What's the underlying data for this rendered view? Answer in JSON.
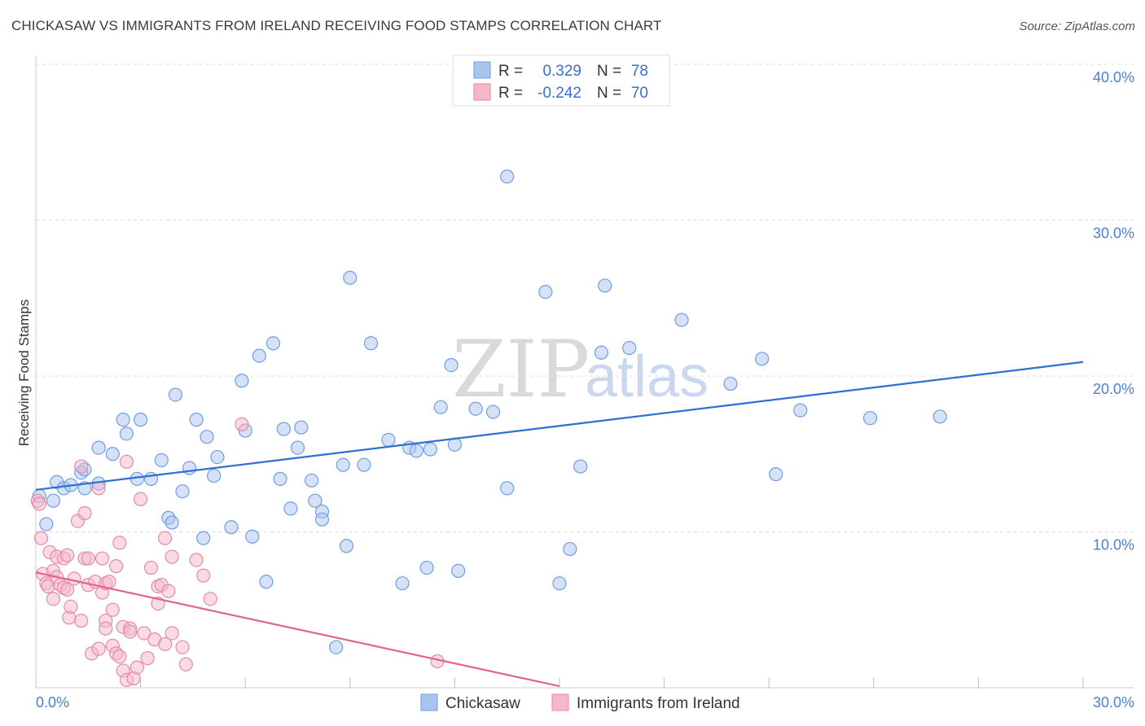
{
  "header": {
    "title": "CHICKASAW VS IMMIGRANTS FROM IRELAND RECEIVING FOOD STAMPS CORRELATION CHART",
    "source": "Source: ZipAtlas.com"
  },
  "watermark": {
    "zip": "ZIP",
    "atlas": "atlas"
  },
  "legend": {
    "rows": [
      {
        "r_label": "R =",
        "r_value": "0.329",
        "n_label": "N =",
        "n_value": "78",
        "color": "#a9c4ee"
      },
      {
        "r_label": "R =",
        "r_value": "-0.242",
        "n_label": "N =",
        "n_value": "70",
        "color": "#f5b8c9"
      }
    ]
  },
  "bottom_legend": [
    {
      "label": "Chickasaw",
      "color": "#a9c4ee"
    },
    {
      "label": "Immigrants from Ireland",
      "color": "#f5b8c9"
    }
  ],
  "chart_data": {
    "type": "scatter",
    "title": "CHICKASAW VS IMMIGRANTS FROM IRELAND RECEIVING FOOD STAMPS CORRELATION CHART",
    "xlabel": "",
    "ylabel": "Receiving Food Stamps",
    "xlim": [
      0,
      30
    ],
    "ylim": [
      0,
      40
    ],
    "x_tick_labels": [
      "0.0%",
      "30.0%"
    ],
    "y_ticks": [
      10,
      20,
      30,
      40
    ],
    "y_tick_labels": [
      "10.0%",
      "20.0%",
      "30.0%",
      "40.0%"
    ],
    "grid": true,
    "legend_position": "top-center",
    "series": [
      {
        "name": "Chickasaw",
        "color": "#6f9ee4",
        "fill": "#a9c4ee",
        "trend": {
          "x": [
            0,
            30
          ],
          "y": [
            12.7,
            20.9
          ],
          "color": "#2f6fd1"
        },
        "points": [
          [
            0.1,
            12.3
          ],
          [
            0.5,
            12.0
          ],
          [
            0.3,
            10.5
          ],
          [
            0.6,
            13.2
          ],
          [
            0.8,
            12.8
          ],
          [
            1.0,
            13.0
          ],
          [
            1.3,
            13.8
          ],
          [
            1.4,
            14.0
          ],
          [
            1.4,
            12.8
          ],
          [
            1.8,
            13.1
          ],
          [
            1.8,
            15.4
          ],
          [
            2.2,
            15.0
          ],
          [
            2.5,
            17.2
          ],
          [
            2.6,
            16.3
          ],
          [
            2.9,
            13.4
          ],
          [
            3.0,
            17.2
          ],
          [
            3.3,
            13.4
          ],
          [
            3.6,
            14.6
          ],
          [
            3.8,
            10.9
          ],
          [
            3.9,
            10.6
          ],
          [
            4.0,
            18.8
          ],
          [
            4.2,
            12.6
          ],
          [
            4.4,
            14.1
          ],
          [
            4.6,
            17.2
          ],
          [
            4.8,
            9.6
          ],
          [
            4.9,
            16.1
          ],
          [
            5.1,
            13.6
          ],
          [
            5.2,
            14.8
          ],
          [
            5.6,
            10.3
          ],
          [
            5.9,
            19.7
          ],
          [
            6.0,
            16.5
          ],
          [
            6.2,
            9.7
          ],
          [
            6.4,
            21.3
          ],
          [
            6.6,
            6.8
          ],
          [
            6.8,
            22.1
          ],
          [
            7.0,
            13.4
          ],
          [
            7.1,
            16.6
          ],
          [
            7.3,
            11.5
          ],
          [
            7.5,
            15.4
          ],
          [
            7.6,
            16.7
          ],
          [
            7.9,
            13.3
          ],
          [
            8.0,
            12.0
          ],
          [
            8.2,
            11.3
          ],
          [
            8.2,
            10.8
          ],
          [
            8.6,
            2.6
          ],
          [
            8.8,
            14.3
          ],
          [
            8.9,
            9.1
          ],
          [
            9.0,
            26.3
          ],
          [
            9.4,
            14.3
          ],
          [
            9.6,
            22.1
          ],
          [
            10.1,
            15.9
          ],
          [
            10.5,
            6.7
          ],
          [
            10.7,
            15.4
          ],
          [
            10.9,
            15.2
          ],
          [
            11.2,
            7.7
          ],
          [
            11.3,
            15.3
          ],
          [
            11.6,
            18.0
          ],
          [
            11.9,
            20.7
          ],
          [
            12.0,
            15.6
          ],
          [
            12.1,
            7.5
          ],
          [
            12.6,
            17.9
          ],
          [
            13.1,
            17.7
          ],
          [
            13.5,
            12.8
          ],
          [
            13.5,
            32.8
          ],
          [
            14.6,
            25.4
          ],
          [
            15.0,
            6.7
          ],
          [
            15.3,
            8.9
          ],
          [
            15.6,
            14.2
          ],
          [
            16.2,
            21.5
          ],
          [
            16.3,
            25.8
          ],
          [
            17.0,
            21.8
          ],
          [
            18.5,
            23.6
          ],
          [
            19.9,
            19.5
          ],
          [
            20.8,
            21.1
          ],
          [
            21.2,
            13.7
          ],
          [
            21.9,
            17.8
          ],
          [
            23.9,
            17.3
          ],
          [
            25.9,
            17.4
          ]
        ]
      },
      {
        "name": "Immigrants from Ireland",
        "color": "#e48aa8",
        "fill": "#f5b8c9",
        "trend": {
          "x": [
            0,
            15
          ],
          "y": [
            7.4,
            0.1
          ],
          "color": "#e0648f"
        },
        "points": [
          [
            0.05,
            12.0
          ],
          [
            0.1,
            11.8
          ],
          [
            0.15,
            9.6
          ],
          [
            0.2,
            7.3
          ],
          [
            0.3,
            6.7
          ],
          [
            0.35,
            6.5
          ],
          [
            0.4,
            8.7
          ],
          [
            0.5,
            5.7
          ],
          [
            0.5,
            7.5
          ],
          [
            0.6,
            8.4
          ],
          [
            0.6,
            7.1
          ],
          [
            0.7,
            6.6
          ],
          [
            0.8,
            8.3
          ],
          [
            0.8,
            6.4
          ],
          [
            0.9,
            8.5
          ],
          [
            0.9,
            6.3
          ],
          [
            0.95,
            4.5
          ],
          [
            1.0,
            5.2
          ],
          [
            1.1,
            7.0
          ],
          [
            1.2,
            10.7
          ],
          [
            1.3,
            4.3
          ],
          [
            1.3,
            14.2
          ],
          [
            1.4,
            11.2
          ],
          [
            1.4,
            8.3
          ],
          [
            1.5,
            8.3
          ],
          [
            1.5,
            6.6
          ],
          [
            1.6,
            2.2
          ],
          [
            1.7,
            6.8
          ],
          [
            1.8,
            2.5
          ],
          [
            1.8,
            12.8
          ],
          [
            1.9,
            8.3
          ],
          [
            1.9,
            6.1
          ],
          [
            2.0,
            6.7
          ],
          [
            2.0,
            4.3
          ],
          [
            2.0,
            3.8
          ],
          [
            2.1,
            6.8
          ],
          [
            2.2,
            5.0
          ],
          [
            2.2,
            2.7
          ],
          [
            2.3,
            2.2
          ],
          [
            2.3,
            7.8
          ],
          [
            2.4,
            2.0
          ],
          [
            2.4,
            9.3
          ],
          [
            2.5,
            3.9
          ],
          [
            2.5,
            1.1
          ],
          [
            2.6,
            14.5
          ],
          [
            2.6,
            0.5
          ],
          [
            2.7,
            3.8
          ],
          [
            2.7,
            3.6
          ],
          [
            2.8,
            0.6
          ],
          [
            2.9,
            1.3
          ],
          [
            3.0,
            12.1
          ],
          [
            3.1,
            3.5
          ],
          [
            3.2,
            1.9
          ],
          [
            3.3,
            7.7
          ],
          [
            3.4,
            3.1
          ],
          [
            3.5,
            6.5
          ],
          [
            3.5,
            5.4
          ],
          [
            3.6,
            6.6
          ],
          [
            3.7,
            2.8
          ],
          [
            3.7,
            9.6
          ],
          [
            3.8,
            6.2
          ],
          [
            3.9,
            3.5
          ],
          [
            3.9,
            8.4
          ],
          [
            4.2,
            2.6
          ],
          [
            4.3,
            1.5
          ],
          [
            4.6,
            8.2
          ],
          [
            4.8,
            7.2
          ],
          [
            5.0,
            5.7
          ],
          [
            5.9,
            16.9
          ],
          [
            11.5,
            1.7
          ]
        ]
      }
    ]
  }
}
